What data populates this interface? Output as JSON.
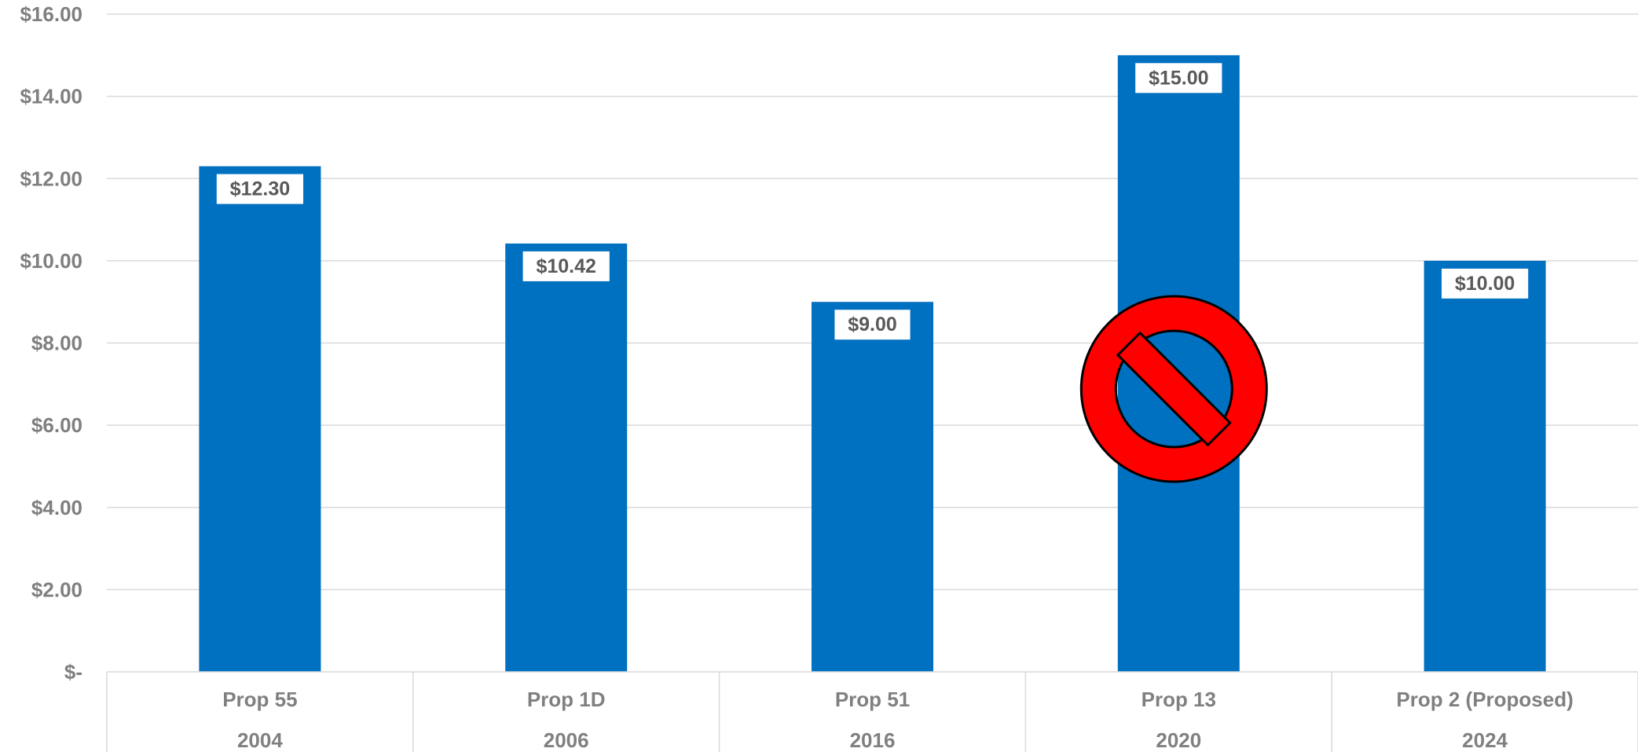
{
  "chart_data": {
    "type": "bar",
    "title": "",
    "xlabel": "",
    "ylabel": "",
    "categories": [
      {
        "label": "Prop 55",
        "year": "2004"
      },
      {
        "label": "Prop 1D",
        "year": "2006"
      },
      {
        "label": "Prop 51",
        "year": "2016"
      },
      {
        "label": "Prop 13",
        "year": "2020"
      },
      {
        "label": "Prop 2 (Proposed)",
        "year": "2024"
      }
    ],
    "values": [
      12.3,
      10.42,
      9.0,
      15.0,
      10.0
    ],
    "data_labels": [
      "$12.30",
      "$10.42",
      "$9.00",
      "$15.00",
      "$10.00"
    ],
    "ylim": [
      0,
      16
    ],
    "yticks": [
      {
        "value": 0,
        "label": "$-"
      },
      {
        "value": 2,
        "label": "$2.00"
      },
      {
        "value": 4,
        "label": "$4.00"
      },
      {
        "value": 6,
        "label": "$6.00"
      },
      {
        "value": 8,
        "label": "$8.00"
      },
      {
        "value": 10,
        "label": "$10.00"
      },
      {
        "value": 12,
        "label": "$12.00"
      },
      {
        "value": 14,
        "label": "$14.00"
      },
      {
        "value": 16,
        "label": "$16.00"
      }
    ],
    "grid": true,
    "legend": "none",
    "bar_color": "#0070c0",
    "annotations": [
      {
        "type": "prohibition-icon",
        "category_index": 3,
        "color": "#ff0000"
      }
    ]
  }
}
